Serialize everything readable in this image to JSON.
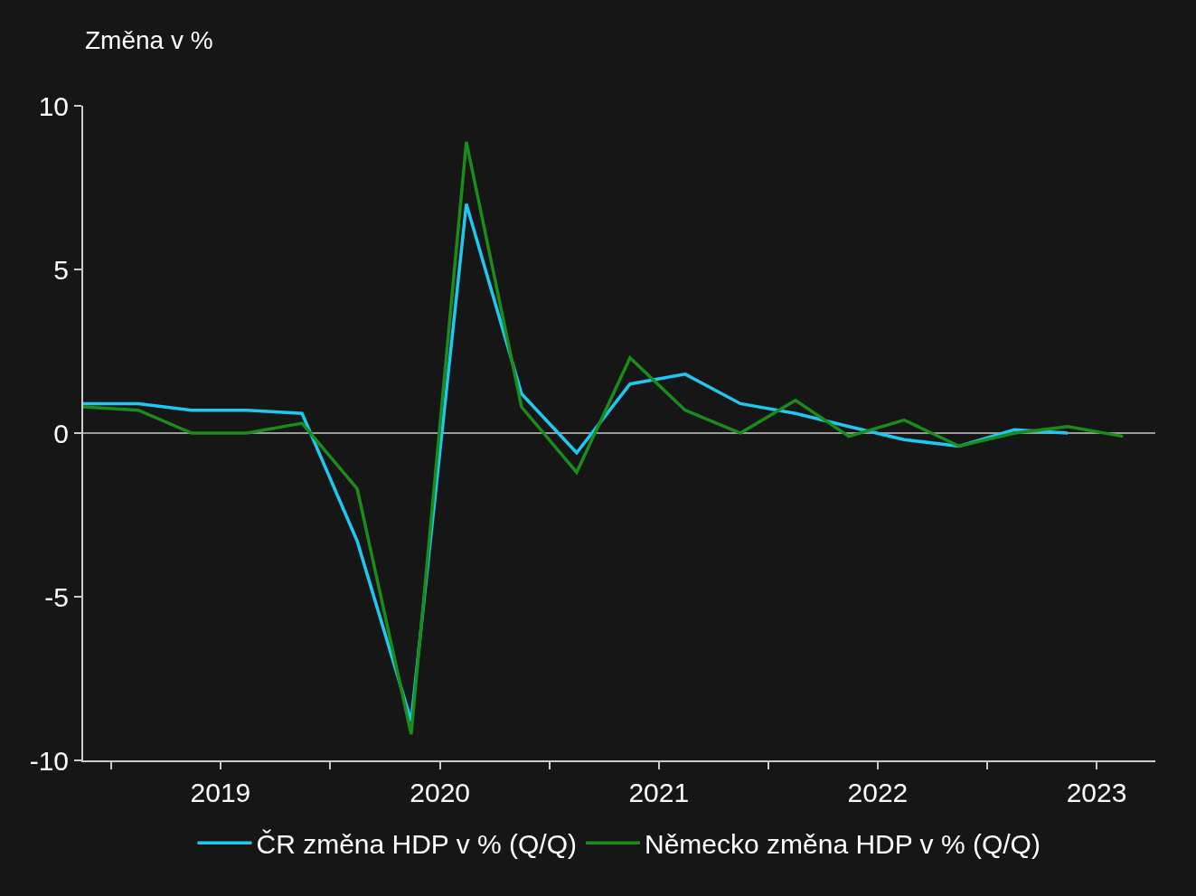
{
  "chart_data": {
    "type": "line",
    "ylabel": "Změna v %",
    "x": [
      "2018-11-15",
      "2019-02-15",
      "2019-05-15",
      "2019-08-15",
      "2019-11-15",
      "2020-02-15",
      "2020-05-15",
      "2020-08-15",
      "2020-11-15",
      "2021-02-15",
      "2021-05-15",
      "2021-08-15",
      "2021-11-15",
      "2022-02-15",
      "2022-05-15",
      "2022-08-15",
      "2022-11-15",
      "2023-02-15",
      "2023-05-15",
      "2023-08-15"
    ],
    "series": [
      {
        "name": "ČR změna HDP v % (Q/Q)",
        "color": "#1ec8f0",
        "values": [
          0.9,
          0.9,
          0.7,
          0.7,
          0.6,
          -3.3,
          -8.8,
          7.0,
          1.2,
          -0.6,
          1.5,
          1.8,
          0.9,
          0.6,
          0.2,
          -0.2,
          -0.4,
          0.1,
          0.0,
          null
        ]
      },
      {
        "name": "Německo změna HDP v % (Q/Q)",
        "color": "#1a8c1a",
        "values": [
          0.8,
          0.7,
          0.0,
          0.0,
          0.3,
          -1.7,
          -9.2,
          8.9,
          0.8,
          -1.2,
          2.3,
          0.7,
          0.0,
          1.0,
          -0.1,
          0.4,
          -0.4,
          0.0,
          0.2,
          -0.1
        ]
      }
    ],
    "xlim": [
      "2018-11-15",
      "2023-10-08"
    ],
    "xticks": [
      {
        "value": "2019-01-01",
        "label": null
      },
      {
        "value": "2019-07-02",
        "label": "2019"
      },
      {
        "value": "2020-01-01",
        "label": null
      },
      {
        "value": "2020-07-02",
        "label": "2020"
      },
      {
        "value": "2021-01-01",
        "label": null
      },
      {
        "value": "2021-07-02",
        "label": "2021"
      },
      {
        "value": "2022-01-01",
        "label": null
      },
      {
        "value": "2022-07-02",
        "label": "2022"
      },
      {
        "value": "2023-01-01",
        "label": null
      },
      {
        "value": "2023-07-02",
        "label": "2023"
      }
    ],
    "ylim": [
      -10,
      10
    ],
    "yticks": [
      -10,
      -5,
      0,
      5,
      10
    ],
    "ref_lines": [
      {
        "axis": "y",
        "value": 0,
        "label": null,
        "color": "#9a9a9a"
      }
    ],
    "grid": false,
    "legend": "bottom",
    "marker": "none",
    "line_style": "solid"
  }
}
